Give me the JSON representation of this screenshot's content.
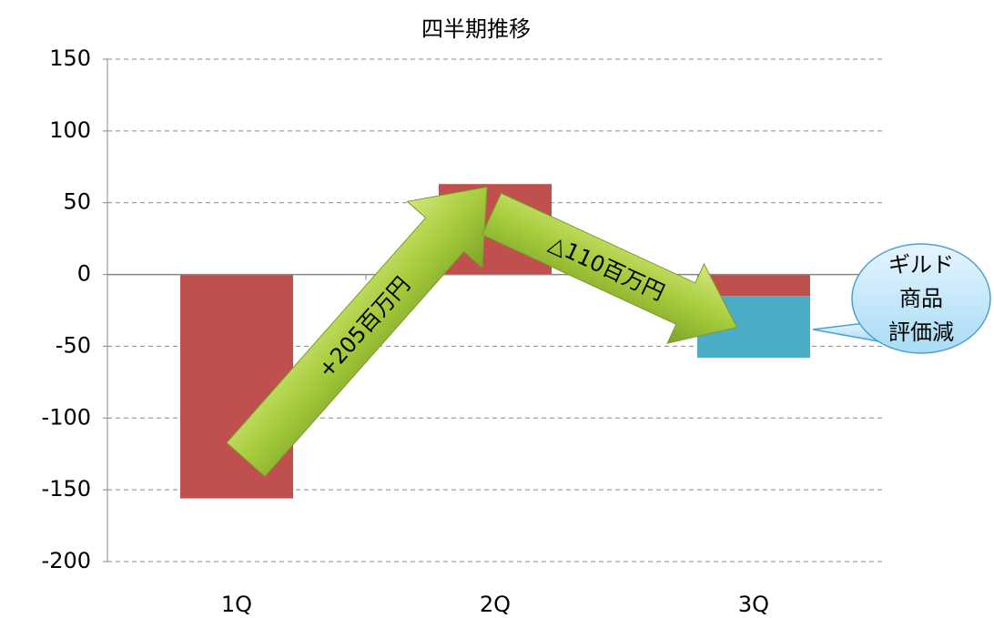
{
  "chart_data": {
    "type": "bar",
    "stacked": true,
    "title": "四半期推移",
    "categories": [
      "1Q",
      "2Q",
      "3Q"
    ],
    "series": [
      {
        "color": "#c0504d",
        "values": [
          -156,
          63,
          -15
        ]
      },
      {
        "color": "#4bacc6",
        "values": [
          null,
          null,
          -43
        ]
      }
    ],
    "ylim": [
      -200,
      150
    ],
    "yticks": [
      -200,
      -150,
      -100,
      -50,
      0,
      50,
      100,
      150
    ],
    "negative_tick_color": "#ff0000",
    "grid": true,
    "annotations": [
      "+205百万円",
      "△110百万円"
    ],
    "callout": [
      "ギルド",
      "商品",
      "評価減"
    ]
  }
}
